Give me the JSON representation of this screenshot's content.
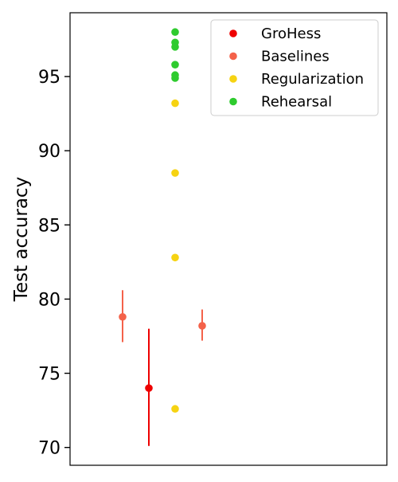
{
  "chart_data": {
    "type": "scatter",
    "title": "",
    "xlabel": "",
    "ylabel": "Test accuracy",
    "ylim": [
      68.8,
      99.3
    ],
    "yticks": [
      70,
      75,
      80,
      85,
      90,
      95
    ],
    "ytick_labels": [
      "70",
      "75",
      "80",
      "85",
      "90",
      "95"
    ],
    "xticks_visible": false,
    "grid": false,
    "legend": {
      "placement": "top-right",
      "entries": [
        {
          "name": "GroHess",
          "color": "#ee0000"
        },
        {
          "name": "Baselines",
          "color": "#f4624a"
        },
        {
          "name": "Regularization",
          "color": "#f6d312"
        },
        {
          "name": "Rehearsal",
          "color": "#2ecb2e"
        }
      ]
    },
    "series": [
      {
        "name": "GroHess",
        "color": "#ee0000",
        "points": [
          {
            "x": 1,
            "y": 74.0,
            "err_low": 70.1,
            "err_high": 78.0
          }
        ]
      },
      {
        "name": "Baselines",
        "color": "#f4624a",
        "points": [
          {
            "x": 0,
            "y": 78.8,
            "err_low": 77.1,
            "err_high": 80.6
          },
          {
            "x": 3,
            "y": 78.2,
            "err_low": 77.2,
            "err_high": 79.3
          }
        ]
      },
      {
        "name": "Regularization",
        "color": "#f6d312",
        "points": [
          {
            "x": 2,
            "y": 72.6
          },
          {
            "x": 2,
            "y": 82.8
          },
          {
            "x": 2,
            "y": 88.5
          },
          {
            "x": 2,
            "y": 93.2
          }
        ]
      },
      {
        "name": "Rehearsal",
        "color": "#2ecb2e",
        "points": [
          {
            "x": 2,
            "y": 94.9
          },
          {
            "x": 2,
            "y": 95.1
          },
          {
            "x": 2,
            "y": 95.8
          },
          {
            "x": 2,
            "y": 97.0
          },
          {
            "x": 2,
            "y": 97.3
          },
          {
            "x": 2,
            "y": 98.0
          }
        ]
      }
    ]
  }
}
